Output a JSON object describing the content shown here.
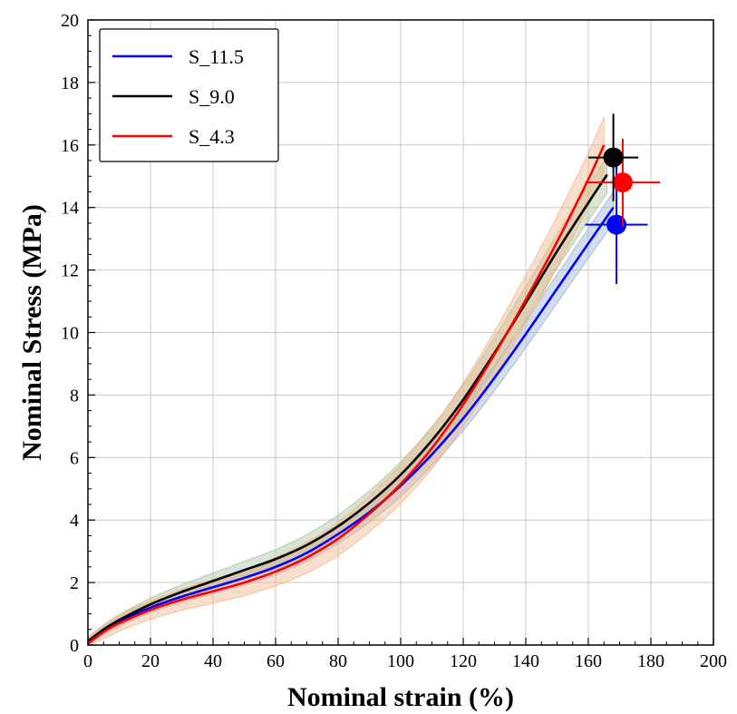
{
  "chart_data": {
    "type": "line",
    "xlabel": "Nominal strain (%)",
    "ylabel": "Nominal Stress (MPa)",
    "xlim": [
      0,
      200
    ],
    "ylim": [
      0,
      20
    ],
    "xticks": [
      "0",
      "20",
      "40",
      "60",
      "80",
      "100",
      "120",
      "140",
      "160",
      "180",
      "200"
    ],
    "yticks": [
      "0",
      "2",
      "4",
      "6",
      "8",
      "10",
      "12",
      "14",
      "16",
      "18",
      "20"
    ],
    "grid": true,
    "legend_position": "top-left",
    "series": [
      {
        "name": "S_11.5",
        "color": "#0000ff",
        "band_color": "#9bb4d6",
        "x": [
          0,
          5,
          10,
          20,
          30,
          40,
          50,
          60,
          70,
          80,
          90,
          100,
          110,
          120,
          130,
          140,
          150,
          160,
          168
        ],
        "y": [
          0.1,
          0.45,
          0.75,
          1.2,
          1.55,
          1.85,
          2.15,
          2.5,
          2.95,
          3.55,
          4.25,
          5.1,
          6.1,
          7.25,
          8.55,
          9.95,
          11.4,
          12.85,
          14.0
        ],
        "band": 0.25,
        "end_point": {
          "x": 169,
          "y": 13.45,
          "xerr": 10,
          "yerr": 1.9
        }
      },
      {
        "name": "S_9.0",
        "color": "#000000",
        "band_color": "#a8c4a0",
        "x": [
          0,
          5,
          10,
          20,
          30,
          40,
          50,
          60,
          70,
          80,
          90,
          100,
          110,
          120,
          130,
          140,
          150,
          160,
          166
        ],
        "y": [
          0.12,
          0.5,
          0.8,
          1.3,
          1.7,
          2.05,
          2.4,
          2.75,
          3.2,
          3.8,
          4.55,
          5.45,
          6.55,
          7.85,
          9.35,
          10.95,
          12.6,
          14.15,
          15.05
        ],
        "band": 0.3,
        "end_point": {
          "x": 168,
          "y": 15.6,
          "xerr": 8,
          "yerr": 1.4
        }
      },
      {
        "name": "S_4.3",
        "color": "#ff0000",
        "band_color": "#f2b98c",
        "x": [
          0,
          5,
          10,
          20,
          30,
          40,
          50,
          60,
          70,
          80,
          90,
          100,
          110,
          120,
          130,
          140,
          150,
          160,
          165
        ],
        "y": [
          0.05,
          0.42,
          0.7,
          1.12,
          1.45,
          1.72,
          2.0,
          2.35,
          2.8,
          3.4,
          4.2,
          5.15,
          6.3,
          7.7,
          9.3,
          11.05,
          12.9,
          14.9,
          16.0
        ],
        "band": 0.45,
        "end_point": {
          "x": 171,
          "y": 14.8,
          "xerr": 12,
          "yerr": 1.4
        }
      }
    ]
  }
}
